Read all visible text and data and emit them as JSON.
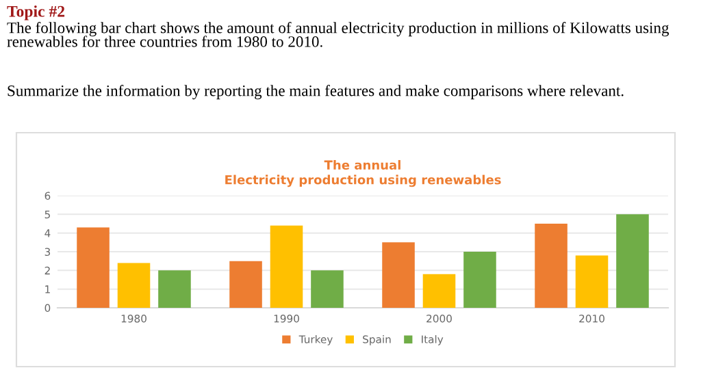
{
  "chart_data": {
    "type": "bar",
    "title": "The annual\nElectricity production using renewables",
    "annotations": [
      "Topic #2",
      "The following bar chart shows the amount of annual electricity production in millions of Kilowatts using renewables for three countries from 1980 to 2010.",
      "Summarize the information by reporting the main features and make comparisons where relevant."
    ],
    "categories": [
      "1980",
      "1990",
      "2000",
      "2010"
    ],
    "series": [
      {
        "name": "Turkey",
        "color": "#ed7d31",
        "values": [
          4.3,
          2.5,
          3.5,
          4.5
        ]
      },
      {
        "name": "Spain",
        "color": "#ffc000",
        "values": [
          2.4,
          4.4,
          1.8,
          2.8
        ]
      },
      {
        "name": "Italy",
        "color": "#70ad47",
        "values": [
          2,
          2,
          3,
          5
        ]
      }
    ],
    "ylim": [
      0,
      6
    ],
    "yticks": [
      0,
      1,
      2,
      3,
      4,
      5,
      6
    ],
    "grid": "y",
    "legend": "bottom"
  }
}
